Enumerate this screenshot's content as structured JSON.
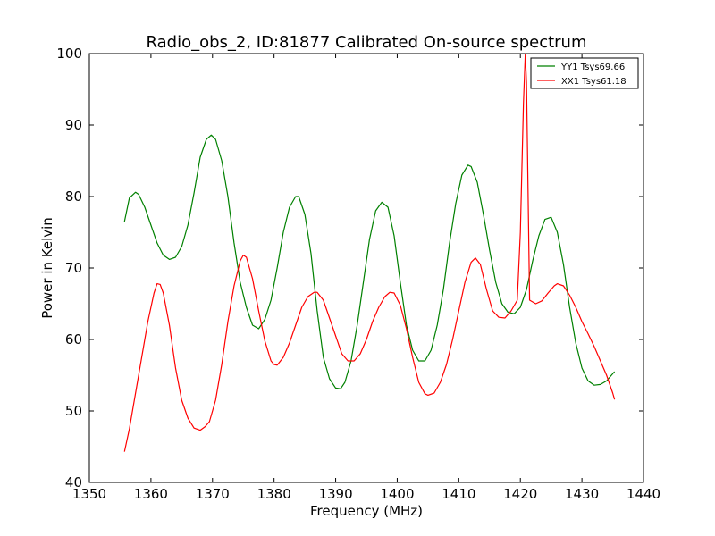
{
  "chart_data": {
    "type": "line",
    "title": "Radio_obs_2, ID:81877 Calibrated On-source spectrum",
    "xlabel": "Frequency (MHz)",
    "ylabel": "Power in Kelvin",
    "xlim": [
      1350,
      1440
    ],
    "ylim": [
      40,
      100
    ],
    "xticks": [
      1350,
      1360,
      1370,
      1380,
      1390,
      1400,
      1410,
      1420,
      1430,
      1440
    ],
    "yticks": [
      40,
      50,
      60,
      70,
      80,
      90,
      100
    ],
    "grid": false,
    "legend_position": "top-right",
    "series": [
      {
        "name": "YY1 Tsys69.66",
        "color": "#008000",
        "x": [
          1355.7,
          1356.5,
          1357.5,
          1358.0,
          1359.0,
          1360.0,
          1361.0,
          1362.0,
          1363.0,
          1364.0,
          1365.0,
          1366.0,
          1367.0,
          1368.0,
          1369.0,
          1369.8,
          1370.5,
          1371.5,
          1372.5,
          1373.5,
          1374.5,
          1375.5,
          1376.5,
          1377.5,
          1378.5,
          1379.5,
          1380.5,
          1381.5,
          1382.5,
          1383.5,
          1384.0,
          1385.0,
          1386.0,
          1387.0,
          1388.0,
          1389.0,
          1390.0,
          1390.8,
          1391.5,
          1392.5,
          1393.5,
          1394.5,
          1395.5,
          1396.5,
          1397.5,
          1398.5,
          1399.5,
          1400.5,
          1401.5,
          1402.5,
          1403.5,
          1404.5,
          1405.5,
          1406.5,
          1407.5,
          1408.5,
          1409.5,
          1410.5,
          1411.5,
          1412.0,
          1413.0,
          1414.0,
          1415.0,
          1416.0,
          1417.0,
          1418.0,
          1419.0,
          1420.0,
          1421.0,
          1422.0,
          1423.0,
          1424.0,
          1425.0,
          1426.0,
          1427.0,
          1428.0,
          1429.0,
          1430.0,
          1431.0,
          1432.0,
          1433.0,
          1434.0,
          1435.0,
          1435.3
        ],
        "y": [
          76.5,
          79.8,
          80.6,
          80.3,
          78.5,
          76.0,
          73.5,
          71.8,
          71.2,
          71.5,
          73.0,
          76.0,
          80.5,
          85.5,
          88.0,
          88.6,
          88.0,
          85.0,
          80.0,
          73.5,
          68.0,
          64.5,
          62.0,
          61.5,
          62.8,
          65.5,
          70.0,
          75.0,
          78.5,
          80.0,
          80.0,
          77.5,
          72.0,
          64.0,
          57.5,
          54.5,
          53.2,
          53.1,
          54.0,
          57.0,
          62.0,
          68.0,
          74.0,
          78.0,
          79.2,
          78.5,
          74.5,
          68.0,
          62.0,
          58.5,
          57.0,
          57.0,
          58.5,
          62.0,
          67.0,
          73.5,
          79.0,
          83.0,
          84.4,
          84.2,
          82.0,
          77.5,
          72.5,
          68.0,
          65.0,
          63.8,
          63.6,
          64.5,
          67.0,
          71.0,
          74.5,
          76.8,
          77.1,
          75.0,
          70.5,
          64.5,
          59.5,
          56.0,
          54.2,
          53.6,
          53.7,
          54.2,
          55.2,
          55.5
        ]
      },
      {
        "name": "XX1 Tsys61.18",
        "color": "#ff0000",
        "x": [
          1355.7,
          1356.5,
          1357.5,
          1358.5,
          1359.5,
          1360.5,
          1361.0,
          1361.5,
          1362.0,
          1363.0,
          1364.0,
          1365.0,
          1366.0,
          1367.0,
          1368.0,
          1368.8,
          1369.5,
          1370.5,
          1371.5,
          1372.5,
          1373.5,
          1374.5,
          1375.0,
          1375.5,
          1376.5,
          1377.5,
          1378.5,
          1379.5,
          1380.0,
          1380.5,
          1381.5,
          1382.5,
          1383.5,
          1384.5,
          1385.5,
          1386.5,
          1387.0,
          1388.0,
          1389.0,
          1390.0,
          1391.0,
          1392.0,
          1393.0,
          1394.0,
          1395.0,
          1396.0,
          1397.0,
          1398.0,
          1398.8,
          1399.5,
          1400.5,
          1401.5,
          1402.5,
          1403.5,
          1404.5,
          1405.0,
          1406.0,
          1407.0,
          1408.0,
          1409.0,
          1410.0,
          1411.0,
          1412.0,
          1412.7,
          1413.5,
          1414.5,
          1415.5,
          1416.5,
          1417.5,
          1418.5,
          1419.5,
          1420.0,
          1420.5,
          1420.8,
          1421.0,
          1421.5,
          1422.5,
          1423.5,
          1424.5,
          1425.5,
          1426.0,
          1427.0,
          1428.0,
          1429.0,
          1430.0,
          1431.0,
          1432.0,
          1433.0,
          1434.0,
          1435.0,
          1435.3
        ],
        "y": [
          44.3,
          47.5,
          52.5,
          57.5,
          62.5,
          66.5,
          67.8,
          67.7,
          66.5,
          62.0,
          56.0,
          51.5,
          49.0,
          47.6,
          47.3,
          47.8,
          48.5,
          51.5,
          56.5,
          62.5,
          67.5,
          71.0,
          71.8,
          71.5,
          68.5,
          64.0,
          59.8,
          57.0,
          56.5,
          56.4,
          57.5,
          59.5,
          62.0,
          64.5,
          66.0,
          66.6,
          66.6,
          65.5,
          63.0,
          60.5,
          58.0,
          57.0,
          57.0,
          58.0,
          60.0,
          62.5,
          64.5,
          66.0,
          66.6,
          66.5,
          64.8,
          61.5,
          57.5,
          54.0,
          52.4,
          52.2,
          52.5,
          54.0,
          56.5,
          60.0,
          64.0,
          68.0,
          70.8,
          71.4,
          70.5,
          67.0,
          64.0,
          63.1,
          63.0,
          64.0,
          65.5,
          75.0,
          93.0,
          100.0,
          96.0,
          65.5,
          65.0,
          65.4,
          66.5,
          67.5,
          67.8,
          67.5,
          66.2,
          64.5,
          62.5,
          60.8,
          59.0,
          57.0,
          55.0,
          52.5,
          51.6
        ]
      }
    ]
  }
}
